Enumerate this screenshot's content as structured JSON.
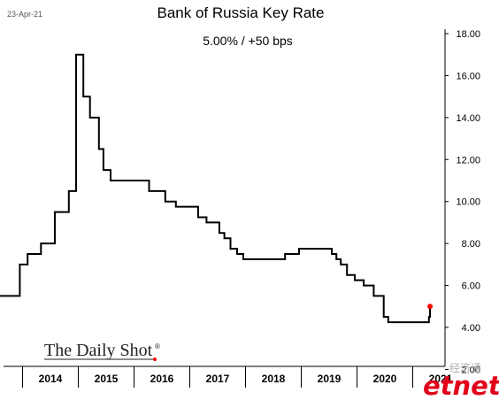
{
  "header": {
    "date": "23-Apr-21",
    "title": "Bank of Russia Key Rate",
    "subtitle": "5.00%  /  +50 bps"
  },
  "watermarks": {
    "brand": "The Daily Shot",
    "brand_mark": "®",
    "corner_cn": "经济通",
    "corner_logo": "etnet"
  },
  "colors": {
    "line": "#000000",
    "marker": "#ff0000",
    "corner_logo": "#e2001a",
    "corner_cn": "#b0b0b0"
  },
  "chart_data": {
    "type": "line",
    "title": "Bank of Russia Key Rate",
    "subtitle": "5.00%  /  +50 bps",
    "xlabel": "",
    "ylabel": "",
    "grid": false,
    "legend": "none",
    "step": "post",
    "xlim": [
      2013.3,
      2021.8
    ],
    "ylim": [
      2.0,
      18.0
    ],
    "y_axis_side": "right",
    "x_ticks": [
      "2014",
      "2015",
      "2016",
      "2017",
      "2018",
      "2019",
      "2020",
      "2021"
    ],
    "y_ticks": [
      "2.00",
      "4.00",
      "6.00",
      "8.00",
      "10.00",
      "12.00",
      "14.00",
      "16.00",
      "18.00"
    ],
    "series": [
      {
        "x": [
          2013.3,
          2013.78,
          2013.95,
          2014.09,
          2014.33,
          2014.58,
          2014.83,
          2014.96,
          2014.97,
          2015.09,
          2015.21,
          2015.37,
          2015.45,
          2015.58,
          2016.0,
          2016.27,
          2016.56,
          2016.67,
          2016.75,
          2016.9,
          2017.15,
          2017.3,
          2017.38,
          2017.53,
          2017.62,
          2017.73,
          2017.85,
          2017.96,
          2018.21,
          2018.71,
          2018.96,
          2019.45,
          2019.55,
          2019.63,
          2019.71,
          2019.82,
          2019.96,
          2020.12,
          2020.3,
          2020.48,
          2020.56,
          2021.21,
          2021.29,
          2021.31
        ],
        "y": [
          5.5,
          5.5,
          7.0,
          7.5,
          8.0,
          9.5,
          10.5,
          17.0,
          17.0,
          15.0,
          14.0,
          12.5,
          11.5,
          11.0,
          11.0,
          10.5,
          10.0,
          10.0,
          9.75,
          9.75,
          9.25,
          9.0,
          9.0,
          8.5,
          8.25,
          7.75,
          7.5,
          7.25,
          7.25,
          7.5,
          7.75,
          7.75,
          7.5,
          7.25,
          7.0,
          6.5,
          6.25,
          6.0,
          5.5,
          4.5,
          4.25,
          4.25,
          4.5,
          5.0
        ]
      }
    ],
    "last_point": {
      "x": 2021.31,
      "y": 5.0
    }
  }
}
